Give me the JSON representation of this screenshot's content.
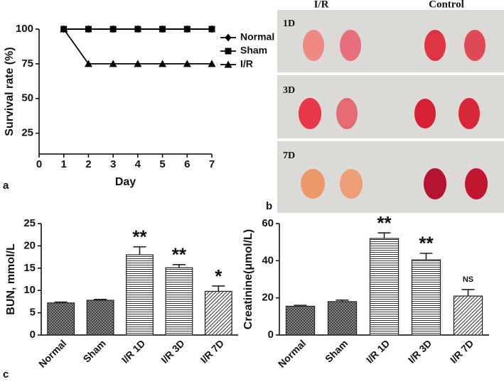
{
  "panel_labels": [
    "a",
    "b",
    "c"
  ],
  "photo_panel": {
    "columns": [
      "I/R",
      "Control"
    ],
    "rows": [
      "1D",
      "3D",
      "7D"
    ]
  },
  "chart_data": [
    {
      "type": "line",
      "x_label": "Day",
      "y_label": "Survival rate (%)",
      "x": [
        1,
        2,
        3,
        4,
        5,
        6,
        7
      ],
      "xlim": [
        0,
        7
      ],
      "xticks": [
        0,
        1,
        2,
        3,
        4,
        5,
        6,
        7
      ],
      "ylim": [
        10,
        100
      ],
      "yticks": [
        25,
        50,
        75,
        100
      ],
      "legend": "right",
      "series": [
        {
          "name": "Normal",
          "color": "#000000",
          "marker": "diamond",
          "values": [
            100,
            100,
            100,
            100,
            100,
            100,
            100
          ]
        },
        {
          "name": "Sham",
          "color": "#000000",
          "marker": "square",
          "values": [
            100,
            100,
            100,
            100,
            100,
            100,
            100
          ]
        },
        {
          "name": "I/R",
          "color": "#000000",
          "marker": "triangle",
          "values": [
            100,
            75,
            75,
            75,
            75,
            75,
            75
          ]
        }
      ]
    },
    {
      "type": "bar",
      "y_label": "BUN, mmol/L",
      "categories": [
        "Normal",
        "Sham",
        "I/R 1D",
        "I/R 3D",
        "I/R 7D"
      ],
      "values": [
        7.2,
        7.8,
        18,
        15.1,
        9.8
      ],
      "errors": [
        0.2,
        0.2,
        1.8,
        0.7,
        1.2
      ],
      "annotations": [
        null,
        null,
        "**",
        "**",
        "*"
      ],
      "patterns": [
        "crosshatch",
        "crosshatch",
        "horizontal",
        "horizontal",
        "diagonal"
      ],
      "ylim": [
        0,
        25
      ],
      "yticks": [
        0,
        5,
        10,
        15,
        20,
        25
      ]
    },
    {
      "type": "bar",
      "y_label": "Creatinine(μmol/L)",
      "categories": [
        "Normal",
        "Sham",
        "I/R 1D",
        "I/R 3D",
        "I/R 7D"
      ],
      "values": [
        15.5,
        18,
        52,
        40.5,
        21
      ],
      "errors": [
        0.5,
        0.8,
        3,
        3.5,
        3.5
      ],
      "annotations": [
        null,
        null,
        "**",
        "**",
        "NS"
      ],
      "patterns": [
        "crosshatch",
        "crosshatch",
        "horizontal",
        "horizontal",
        "diagonal"
      ],
      "ylim": [
        0,
        60
      ],
      "yticks": [
        0,
        20,
        40,
        60
      ]
    }
  ]
}
